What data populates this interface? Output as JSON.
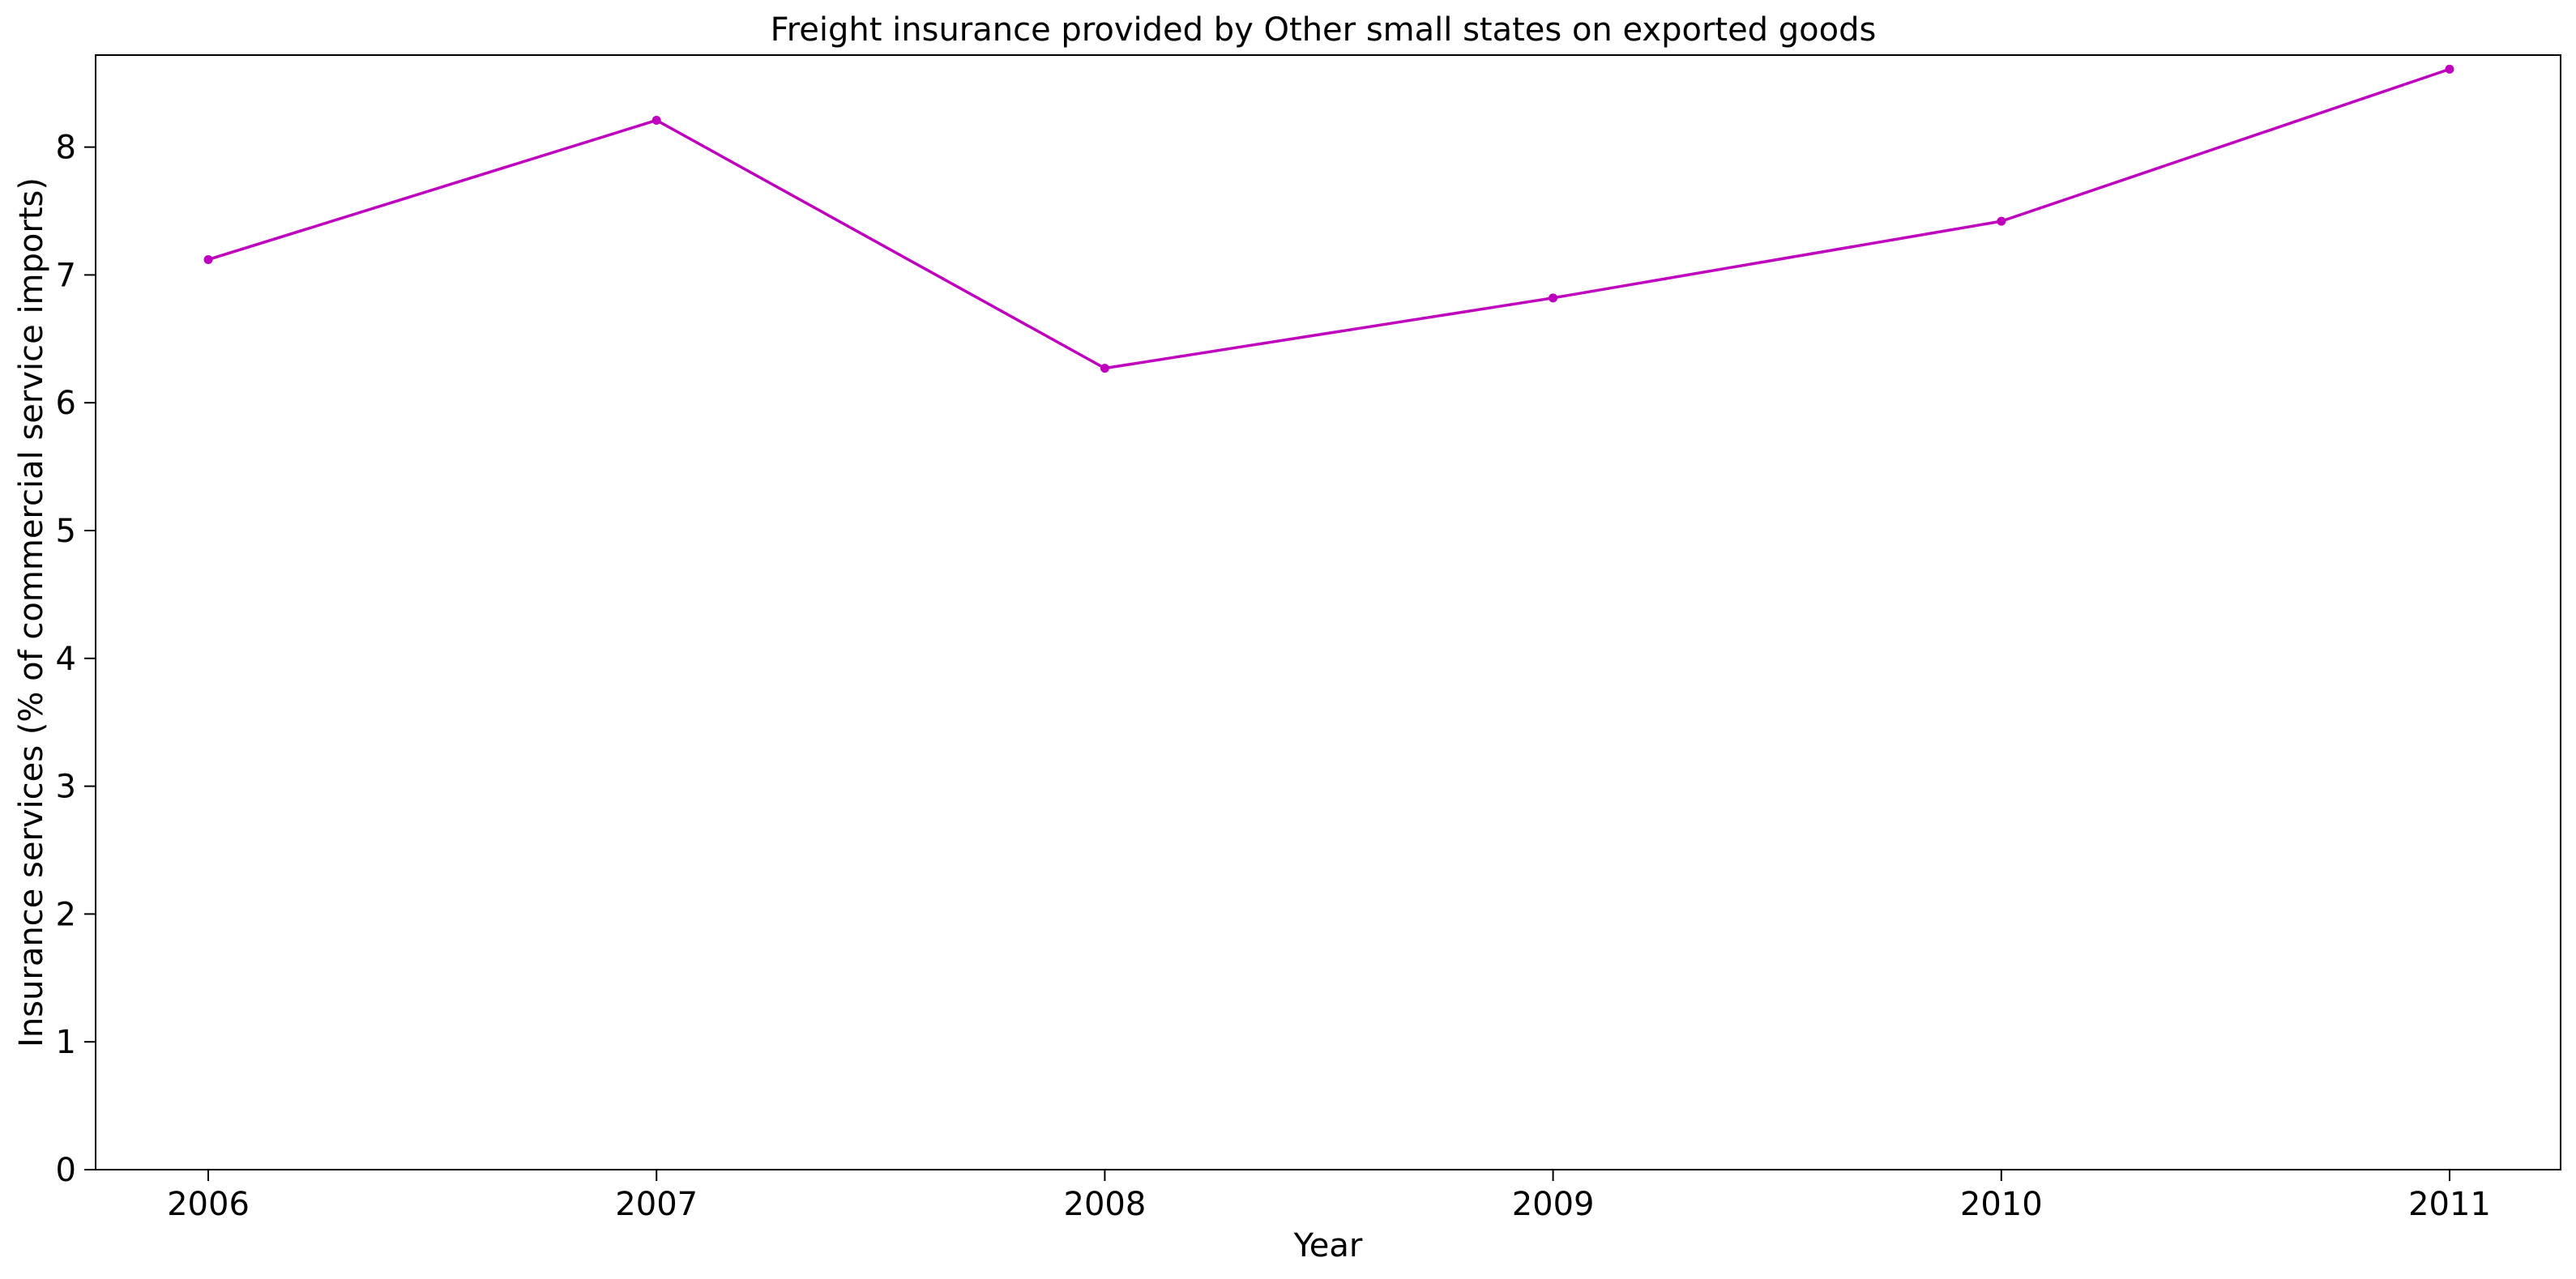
{
  "chart_data": {
    "type": "line",
    "title": "Freight insurance provided by Other small states on exported goods",
    "xlabel": "Year",
    "ylabel": "Insurance services (% of commercial service imports)",
    "categories": [
      "2006",
      "2007",
      "2008",
      "2009",
      "2010",
      "2011"
    ],
    "series": [
      {
        "values": [
          7.12,
          8.21,
          6.27,
          6.82,
          7.42,
          8.61
        ],
        "color": "#bf00bf"
      }
    ],
    "yticks": [
      0,
      1,
      2,
      3,
      4,
      5,
      6,
      7,
      8
    ],
    "ylim": [
      0,
      8.72
    ],
    "grid": false,
    "legend": "none",
    "marker": "circle"
  }
}
